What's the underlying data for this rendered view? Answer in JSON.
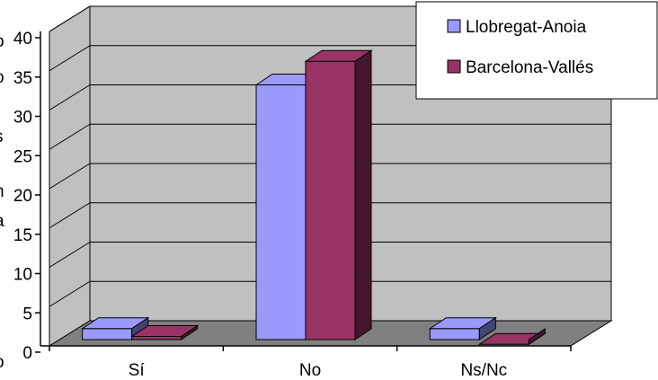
{
  "chart_data": {
    "type": "bar",
    "title": "",
    "xlabel": "",
    "ylabel": "",
    "categories": [
      "Sí",
      "No",
      "Ns/Nc"
    ],
    "series": [
      {
        "name": "Llobregat-Anoia",
        "values": [
          3,
          34,
          3
        ],
        "color": "#9999ff"
      },
      {
        "name": "Barcelona-Vallés",
        "values": [
          2,
          37,
          1
        ],
        "color": "#993366"
      }
    ],
    "ylim": [
      0,
      40
    ],
    "yticks": [
      0,
      5,
      10,
      15,
      20,
      25,
      30,
      35,
      40
    ],
    "grid": true,
    "style_3d": true,
    "legend_position": "top-right",
    "colors": {
      "wall": "#c0c0c0",
      "floor": "#808080",
      "gridline": "#000000"
    }
  }
}
